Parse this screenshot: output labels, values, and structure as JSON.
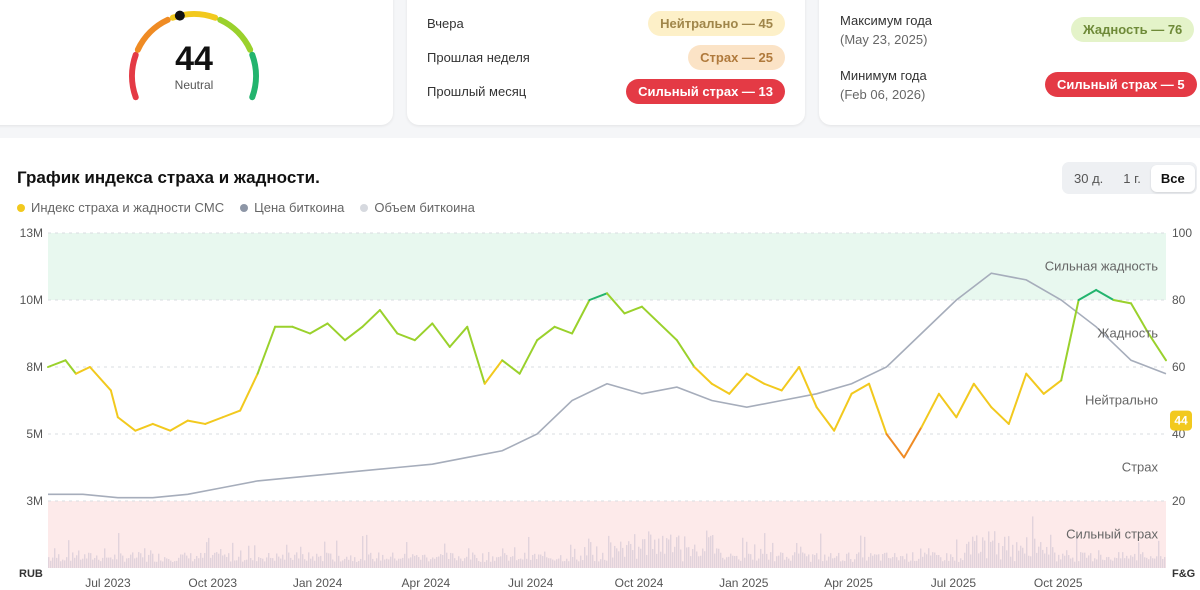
{
  "gauge": {
    "value": "44",
    "label": "Neutral",
    "pointer_value": 44
  },
  "history": [
    {
      "label": "Вчера",
      "badge": "Нейтрально — 45",
      "tone": "neutral"
    },
    {
      "label": "Прошлая неделя",
      "badge": "Страх — 25",
      "tone": "fear"
    },
    {
      "label": "Прошлый месяц",
      "badge": "Сильный страх — 13",
      "tone": "xfear"
    }
  ],
  "yearly": {
    "max": {
      "label": "Максимум года",
      "date": "(May 23, 2025)",
      "badge": "Жадность — 76"
    },
    "min": {
      "label": "Минимум года",
      "date": "(Feb 06, 2026)",
      "badge": "Сильный страх — 5"
    }
  },
  "chart_section": {
    "title": "График индекса страха и жадности.",
    "tabs": [
      {
        "label": "30 д.",
        "active": false
      },
      {
        "label": "1 г.",
        "active": false
      },
      {
        "label": "Все",
        "active": true
      }
    ],
    "legend": [
      {
        "label": "Индекс страха и жадности CMC",
        "color": "#f2c91e"
      },
      {
        "label": "Цена биткоина",
        "color": "#8d96a6"
      },
      {
        "label": "Объем биткоина",
        "color": "#d6d9df"
      }
    ]
  },
  "chart_data": {
    "type": "line",
    "left_axis": {
      "unit_label": "RUB",
      "ticks": [
        "13M",
        "10M",
        "8M",
        "5M",
        "3M"
      ]
    },
    "right_axis": {
      "unit_label": "F&G",
      "ticks": [
        100,
        80,
        60,
        40,
        20
      ],
      "ylim": [
        0,
        100
      ]
    },
    "x_ticks": [
      "Jul 2023",
      "Oct 2023",
      "Jan 2024",
      "Apr 2024",
      "Jul 2024",
      "Oct 2024",
      "Jan 2025",
      "Apr 2025",
      "Jul 2025",
      "Oct 2025"
    ],
    "zones": [
      {
        "label": "Сильная жадность",
        "value": 90,
        "from": 80,
        "to": 100,
        "color": "#e8f8ef"
      },
      {
        "label": "Жадность",
        "value": 70
      },
      {
        "label": "Нейтрально",
        "value": 50
      },
      {
        "label": "Страх",
        "value": 30
      },
      {
        "label": "Сильный страх",
        "value": 10,
        "from": 0,
        "to": 20,
        "color": "#fdeaea"
      }
    ],
    "current_value": 44,
    "x_range": [
      0,
      32
    ],
    "fear_greed_index": [
      [
        0,
        60
      ],
      [
        0.5,
        62
      ],
      [
        0.8,
        58
      ],
      [
        1.2,
        60
      ],
      [
        1.8,
        53
      ],
      [
        2.0,
        45
      ],
      [
        2.5,
        41
      ],
      [
        3.0,
        43
      ],
      [
        3.5,
        41
      ],
      [
        4.0,
        44
      ],
      [
        4.5,
        43
      ],
      [
        5.0,
        45
      ],
      [
        5.5,
        47
      ],
      [
        6.0,
        58
      ],
      [
        6.5,
        72
      ],
      [
        7.0,
        72
      ],
      [
        7.5,
        70
      ],
      [
        8.0,
        73
      ],
      [
        8.5,
        68
      ],
      [
        9.0,
        72
      ],
      [
        9.5,
        77
      ],
      [
        10.0,
        70
      ],
      [
        10.5,
        68
      ],
      [
        11.0,
        73
      ],
      [
        11.5,
        66
      ],
      [
        12.0,
        72
      ],
      [
        12.5,
        55
      ],
      [
        13.0,
        62
      ],
      [
        13.5,
        58
      ],
      [
        14.0,
        68
      ],
      [
        14.5,
        72
      ],
      [
        15.0,
        70
      ],
      [
        15.5,
        80
      ],
      [
        16.0,
        82
      ],
      [
        16.5,
        76
      ],
      [
        17.0,
        78
      ],
      [
        17.5,
        73
      ],
      [
        18.0,
        68
      ],
      [
        18.5,
        60
      ],
      [
        19.0,
        55
      ],
      [
        19.5,
        52
      ],
      [
        20.0,
        58
      ],
      [
        20.5,
        55
      ],
      [
        21.0,
        53
      ],
      [
        21.5,
        60
      ],
      [
        22.0,
        48
      ],
      [
        22.5,
        41
      ],
      [
        23.0,
        52
      ],
      [
        23.5,
        55
      ],
      [
        24.0,
        40
      ],
      [
        24.5,
        33
      ],
      [
        25.0,
        42
      ],
      [
        25.5,
        52
      ],
      [
        26.0,
        45
      ],
      [
        26.5,
        55
      ],
      [
        27.0,
        48
      ],
      [
        27.5,
        43
      ],
      [
        28.0,
        58
      ],
      [
        28.5,
        52
      ],
      [
        29.0,
        56
      ],
      [
        29.5,
        80
      ],
      [
        30.0,
        83
      ],
      [
        30.5,
        80
      ],
      [
        31.0,
        79
      ],
      [
        31.5,
        70
      ],
      [
        32.0,
        62
      ]
    ],
    "bitcoin_price": [
      [
        0,
        22
      ],
      [
        1,
        22
      ],
      [
        2,
        21
      ],
      [
        3,
        21
      ],
      [
        4,
        22
      ],
      [
        5,
        24
      ],
      [
        6,
        26
      ],
      [
        7,
        27
      ],
      [
        8,
        28
      ],
      [
        9,
        29
      ],
      [
        10,
        30
      ],
      [
        11,
        31
      ],
      [
        12,
        33
      ],
      [
        13,
        35
      ],
      [
        14,
        40
      ],
      [
        15,
        50
      ],
      [
        16,
        55
      ],
      [
        17,
        52
      ],
      [
        18,
        54
      ],
      [
        19,
        50
      ],
      [
        20,
        48
      ],
      [
        21,
        50
      ],
      [
        22,
        52
      ],
      [
        23,
        55
      ],
      [
        24,
        60
      ],
      [
        25,
        70
      ],
      [
        26,
        80
      ],
      [
        27,
        88
      ],
      [
        28,
        86
      ],
      [
        29,
        80
      ],
      [
        30,
        72
      ],
      [
        31,
        62
      ],
      [
        32,
        58
      ]
    ]
  }
}
